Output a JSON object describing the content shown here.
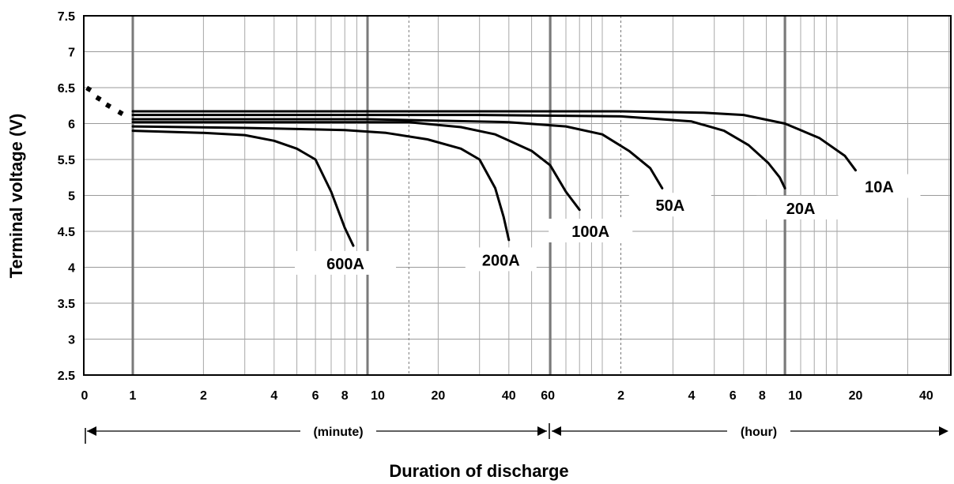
{
  "chart_data": {
    "type": "line",
    "ylabel": "Terminal voltage (V)",
    "xlabel": "Duration of discharge",
    "ylim": [
      2.5,
      7.5
    ],
    "y_ticks": [
      "2.5",
      "3",
      "3.5",
      "4",
      "4.5",
      "5",
      "5.5",
      "6",
      "6.5",
      "7",
      "7.5"
    ],
    "x_scale": "log",
    "x_ticks": [
      "0",
      "1",
      "2",
      "4",
      "6",
      "8",
      "10",
      "20",
      "40",
      "60",
      "2",
      "4",
      "6",
      "8",
      "10",
      "20",
      "40"
    ],
    "grid": true,
    "unit_ranges": [
      {
        "label": "(minute)",
        "from_minutes": 0,
        "to_minutes": 60
      },
      {
        "label": "(hour)",
        "from_minutes": 60,
        "to_minutes": 3600
      }
    ],
    "series": [
      {
        "name": "600A",
        "x_minutes": [
          1,
          2,
          3,
          4,
          5,
          6,
          7,
          8,
          8.7
        ],
        "y": [
          5.9,
          5.87,
          5.84,
          5.76,
          5.65,
          5.5,
          5.05,
          4.55,
          4.3
        ]
      },
      {
        "name": "200A",
        "x_minutes": [
          1,
          3,
          8,
          12,
          18,
          25,
          30,
          35,
          38,
          40
        ],
        "y": [
          5.96,
          5.94,
          5.91,
          5.87,
          5.78,
          5.65,
          5.5,
          5.1,
          4.7,
          4.38
        ]
      },
      {
        "name": "100A",
        "x_minutes": [
          1,
          5,
          15,
          25,
          35,
          50,
          60,
          70,
          80
        ],
        "y": [
          6.02,
          6.02,
          6.02,
          5.95,
          5.85,
          5.62,
          5.42,
          5.05,
          4.8
        ]
      },
      {
        "name": "50A",
        "x_minutes": [
          1,
          10,
          40,
          70,
          100,
          130,
          160,
          180
        ],
        "y": [
          6.06,
          6.06,
          6.02,
          5.96,
          5.85,
          5.62,
          5.38,
          5.1
        ]
      },
      {
        "name": "20A",
        "x_minutes": [
          1,
          30,
          120,
          240,
          330,
          420,
          510,
          570,
          600
        ],
        "y": [
          6.12,
          6.12,
          6.1,
          6.03,
          5.9,
          5.7,
          5.45,
          5.25,
          5.1
        ]
      },
      {
        "name": "10A",
        "x_minutes": [
          1,
          120,
          270,
          400,
          600,
          840,
          1080,
          1200
        ],
        "y": [
          6.17,
          6.17,
          6.15,
          6.12,
          6.0,
          5.8,
          5.55,
          5.35
        ]
      }
    ],
    "initial_dip_markers": [
      {
        "x_minutes": 0.1,
        "y": 6.48
      },
      {
        "x_minutes": 0.3,
        "y": 6.35
      },
      {
        "x_minutes": 0.5,
        "y": 6.25
      },
      {
        "x_minutes": 0.75,
        "y": 6.15
      }
    ]
  }
}
